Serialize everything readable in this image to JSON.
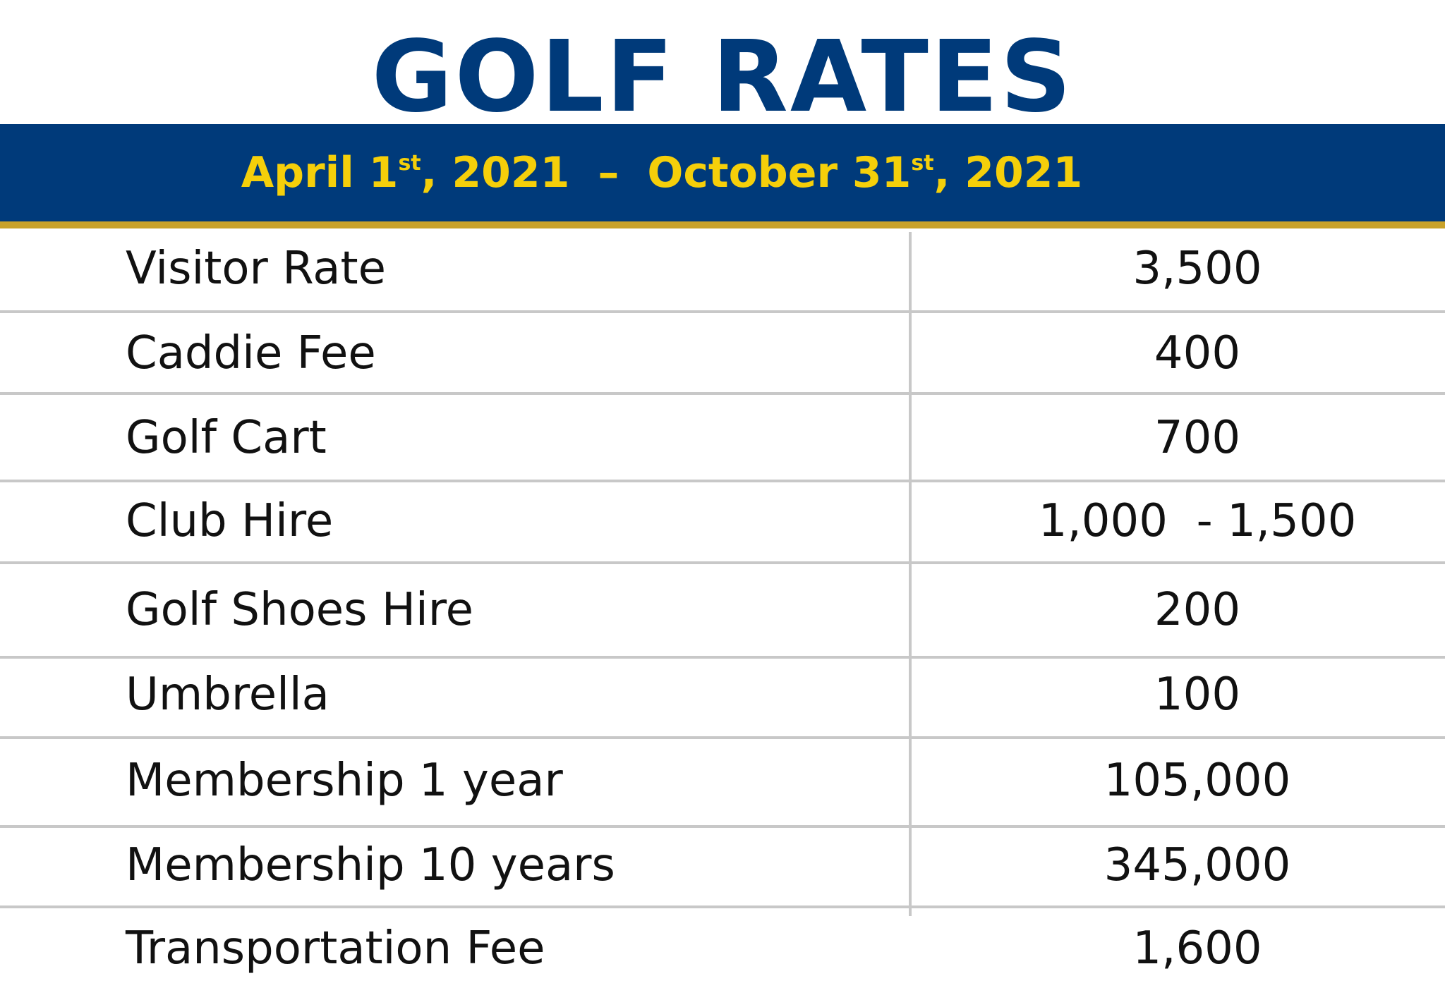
{
  "title": "GOLF RATES",
  "period": {
    "start_month_day": "April 1",
    "start_suffix": "st",
    "start_year": ", 2021",
    "separator": "–",
    "end_month_day": "October 31",
    "end_suffix": "st",
    "end_year": ", 2021"
  },
  "rates": [
    {
      "label": "Visitor Rate",
      "value": "3,500"
    },
    {
      "label": "Caddie Fee",
      "value": "400"
    },
    {
      "label": "Golf Cart",
      "value": "700"
    },
    {
      "label": "Club Hire",
      "value": "1,000  - 1,500"
    },
    {
      "label": "Golf Shoes Hire",
      "value": "200"
    },
    {
      "label": "Umbrella",
      "value": "100"
    },
    {
      "label": "Membership 1 year",
      "value": "105,000"
    },
    {
      "label": "Membership 10 years",
      "value": "345,000"
    },
    {
      "label": "Transportation Fee",
      "value": "1,600"
    }
  ],
  "colors": {
    "navy": "#003a7a",
    "gold": "#c9a22a",
    "yellow_text": "#f5cf0a",
    "rule_gray": "#c8c8c8"
  }
}
